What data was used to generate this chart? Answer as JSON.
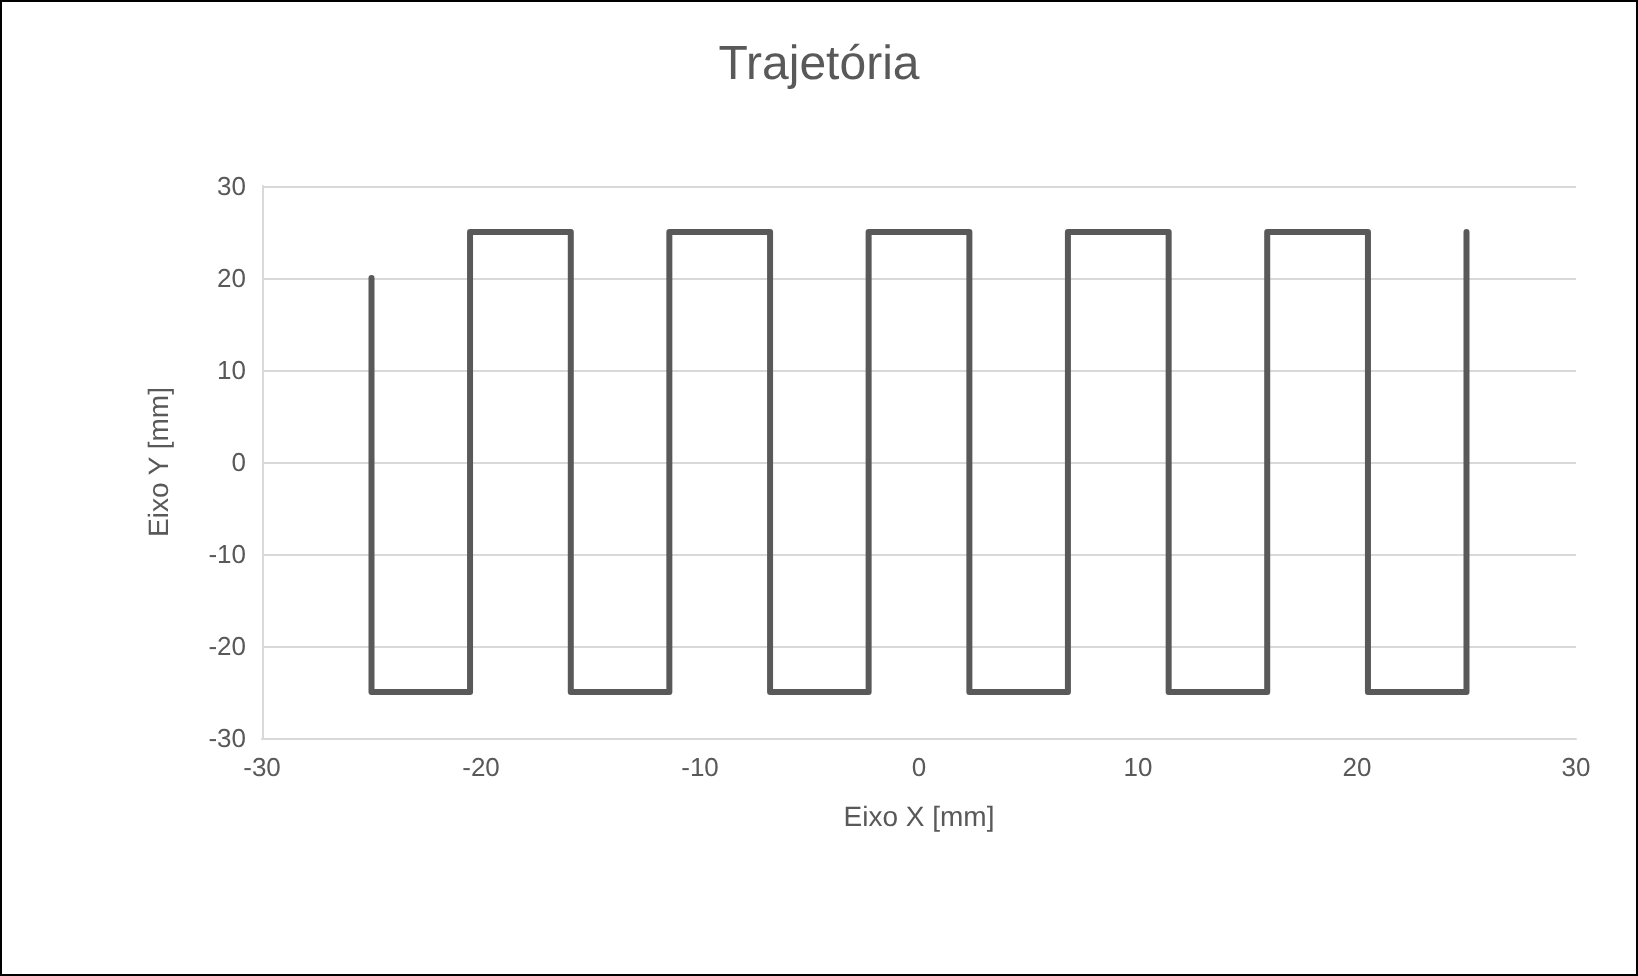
{
  "chart_data": {
    "type": "line",
    "title": "Trajetória",
    "xlabel": "Eixo X [mm]",
    "ylabel": "Eixo Y [mm]",
    "x": [
      -25,
      -25,
      -20.5,
      -20.5,
      -15.9,
      -15.9,
      -11.4,
      -11.4,
      -6.8,
      -6.8,
      -2.3,
      -2.3,
      2.3,
      2.3,
      6.8,
      6.8,
      11.4,
      11.4,
      15.9,
      15.9,
      20.5,
      20.5,
      25,
      25
    ],
    "series": [
      {
        "color": "#595959",
        "values": [
          20,
          -25,
          -25,
          25,
          25,
          -25,
          -25,
          25,
          25,
          -25,
          -25,
          25,
          25,
          -25,
          -25,
          25,
          25,
          -25,
          -25,
          25,
          25,
          -25,
          -25,
          25
        ]
      }
    ],
    "xlim": [
      -30,
      30
    ],
    "xticks": [
      -30,
      -20,
      -10,
      0,
      10,
      20,
      30
    ],
    "ylim": [
      -30,
      30
    ],
    "yticks": [
      -30,
      -20,
      -10,
      0,
      10,
      20,
      30
    ],
    "grid": "y",
    "marker": "none",
    "line_style": "solid"
  }
}
